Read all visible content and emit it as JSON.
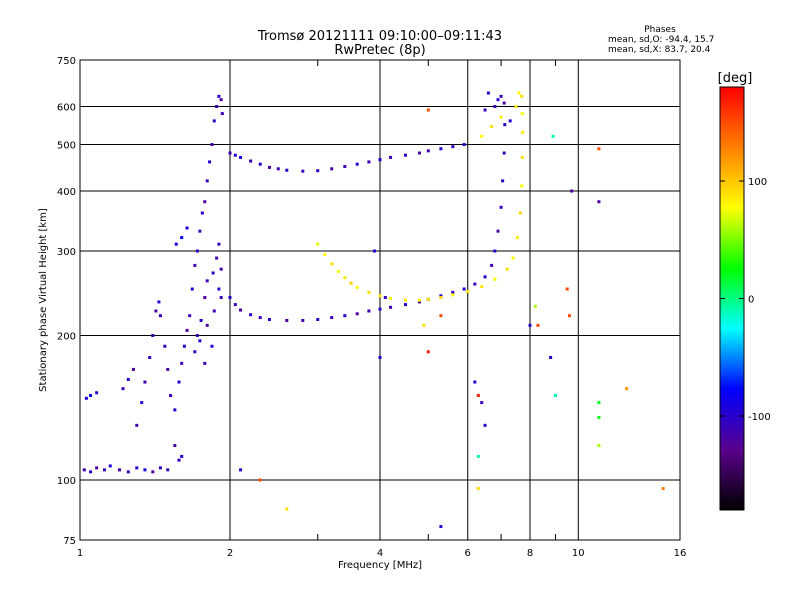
{
  "chart_data": {
    "type": "scatter",
    "title": "Tromsø 20121111 09:10:00–09:11:43",
    "subtitle": "RwPretec (8p)",
    "xlabel": "Frequency [MHz]",
    "ylabel": "Stationary phase Virtual Height [km]",
    "x_scale": "log",
    "y_scale": "log",
    "xlim": [
      1,
      16
    ],
    "ylim": [
      75,
      750
    ],
    "grid": true,
    "x_ticks": [
      1,
      2,
      4,
      6,
      8,
      10,
      16
    ],
    "x_minor_ticks": [
      3,
      5,
      7,
      9
    ],
    "y_ticks": [
      75,
      100,
      200,
      300,
      400,
      500,
      600,
      750
    ],
    "info_title": "Phases",
    "info_lines": [
      "mean, sd,O: -94.4, 15.7",
      "mean, sd,X:  83.7, 20.4"
    ],
    "colorbar": {
      "label": "[deg]",
      "range": [
        -180,
        180
      ],
      "ticks": [
        100,
        0,
        -100
      ],
      "colors": [
        "#000000",
        "#5a008c",
        "#0000ff",
        "#00ffff",
        "#00ff00",
        "#ffff00",
        "#ff8000",
        "#ff0000"
      ]
    },
    "series": [
      {
        "values": [
          {
            "x": 1.02,
            "y": 105,
            "p": -110
          },
          {
            "x": 1.05,
            "y": 104,
            "p": -100
          },
          {
            "x": 1.08,
            "y": 106,
            "p": -120
          },
          {
            "x": 1.12,
            "y": 105,
            "p": -105
          },
          {
            "x": 1.15,
            "y": 107,
            "p": -95
          },
          {
            "x": 1.2,
            "y": 105,
            "p": -115
          },
          {
            "x": 1.25,
            "y": 104,
            "p": -110
          },
          {
            "x": 1.3,
            "y": 106,
            "p": -100
          },
          {
            "x": 1.35,
            "y": 105,
            "p": -90
          },
          {
            "x": 1.4,
            "y": 104,
            "p": -120
          },
          {
            "x": 1.45,
            "y": 106,
            "p": -100
          },
          {
            "x": 1.5,
            "y": 105,
            "p": -110
          },
          {
            "x": 1.03,
            "y": 148,
            "p": -90
          },
          {
            "x": 1.05,
            "y": 150,
            "p": -80
          },
          {
            "x": 1.08,
            "y": 152,
            "p": -100
          },
          {
            "x": 1.22,
            "y": 155,
            "p": -110
          },
          {
            "x": 1.25,
            "y": 162,
            "p": -100
          },
          {
            "x": 1.28,
            "y": 170,
            "p": -120
          },
          {
            "x": 1.3,
            "y": 130,
            "p": -110
          },
          {
            "x": 1.33,
            "y": 145,
            "p": -100
          },
          {
            "x": 1.35,
            "y": 160,
            "p": -115
          },
          {
            "x": 1.38,
            "y": 180,
            "p": -105
          },
          {
            "x": 1.4,
            "y": 200,
            "p": -110
          },
          {
            "x": 1.42,
            "y": 225,
            "p": -120
          },
          {
            "x": 1.44,
            "y": 235,
            "p": -100
          },
          {
            "x": 1.45,
            "y": 220,
            "p": -110
          },
          {
            "x": 1.48,
            "y": 190,
            "p": -105
          },
          {
            "x": 1.5,
            "y": 170,
            "p": -115
          },
          {
            "x": 1.52,
            "y": 150,
            "p": -110
          },
          {
            "x": 1.55,
            "y": 140,
            "p": -100
          },
          {
            "x": 1.58,
            "y": 160,
            "p": -95
          },
          {
            "x": 1.6,
            "y": 175,
            "p": -110
          },
          {
            "x": 1.62,
            "y": 190,
            "p": -100
          },
          {
            "x": 1.64,
            "y": 205,
            "p": -120
          },
          {
            "x": 1.66,
            "y": 220,
            "p": -110
          },
          {
            "x": 1.68,
            "y": 250,
            "p": -100
          },
          {
            "x": 1.7,
            "y": 280,
            "p": -115
          },
          {
            "x": 1.72,
            "y": 300,
            "p": -105
          },
          {
            "x": 1.74,
            "y": 330,
            "p": -110
          },
          {
            "x": 1.76,
            "y": 360,
            "p": -100
          },
          {
            "x": 1.78,
            "y": 380,
            "p": -120
          },
          {
            "x": 1.8,
            "y": 420,
            "p": -110
          },
          {
            "x": 1.82,
            "y": 460,
            "p": -100
          },
          {
            "x": 1.84,
            "y": 500,
            "p": -115
          },
          {
            "x": 1.86,
            "y": 560,
            "p": -105
          },
          {
            "x": 1.88,
            "y": 600,
            "p": -110
          },
          {
            "x": 1.9,
            "y": 630,
            "p": -100
          },
          {
            "x": 1.92,
            "y": 620,
            "p": -120
          },
          {
            "x": 1.93,
            "y": 580,
            "p": -110
          },
          {
            "x": 1.55,
            "y": 118,
            "p": -120
          },
          {
            "x": 1.58,
            "y": 110,
            "p": -110
          },
          {
            "x": 1.6,
            "y": 112,
            "p": -100
          },
          {
            "x": 1.72,
            "y": 200,
            "p": -110
          },
          {
            "x": 1.75,
            "y": 215,
            "p": -100
          },
          {
            "x": 1.78,
            "y": 240,
            "p": -120
          },
          {
            "x": 1.8,
            "y": 260,
            "p": -110
          },
          {
            "x": 1.85,
            "y": 270,
            "p": -100
          },
          {
            "x": 1.88,
            "y": 290,
            "p": -115
          },
          {
            "x": 1.9,
            "y": 310,
            "p": -105
          },
          {
            "x": 1.92,
            "y": 240,
            "p": -110
          },
          {
            "x": 1.7,
            "y": 185,
            "p": -110
          },
          {
            "x": 1.74,
            "y": 195,
            "p": -100
          },
          {
            "x": 1.8,
            "y": 210,
            "p": -120
          },
          {
            "x": 1.86,
            "y": 225,
            "p": -110
          },
          {
            "x": 1.9,
            "y": 250,
            "p": -100
          },
          {
            "x": 1.92,
            "y": 275,
            "p": -115
          },
          {
            "x": 1.78,
            "y": 175,
            "p": -110
          },
          {
            "x": 1.84,
            "y": 190,
            "p": -100
          },
          {
            "x": 1.56,
            "y": 310,
            "p": -90
          },
          {
            "x": 1.6,
            "y": 320,
            "p": -80
          },
          {
            "x": 1.64,
            "y": 335,
            "p": -100
          },
          {
            "x": 2.0,
            "y": 480,
            "p": -110
          },
          {
            "x": 2.05,
            "y": 475,
            "p": -100
          },
          {
            "x": 2.1,
            "y": 470,
            "p": -90
          },
          {
            "x": 2.2,
            "y": 462,
            "p": -110
          },
          {
            "x": 2.3,
            "y": 455,
            "p": -100
          },
          {
            "x": 2.4,
            "y": 448,
            "p": -120
          },
          {
            "x": 2.5,
            "y": 445,
            "p": -110
          },
          {
            "x": 2.6,
            "y": 442,
            "p": -100
          },
          {
            "x": 2.8,
            "y": 440,
            "p": -110
          },
          {
            "x": 3.0,
            "y": 441,
            "p": -100
          },
          {
            "x": 3.2,
            "y": 445,
            "p": -120
          },
          {
            "x": 3.4,
            "y": 450,
            "p": -110
          },
          {
            "x": 3.6,
            "y": 455,
            "p": -100
          },
          {
            "x": 3.8,
            "y": 460,
            "p": -110
          },
          {
            "x": 4.0,
            "y": 465,
            "p": -100
          },
          {
            "x": 4.2,
            "y": 470,
            "p": -110
          },
          {
            "x": 4.5,
            "y": 475,
            "p": -100
          },
          {
            "x": 4.8,
            "y": 480,
            "p": -120
          },
          {
            "x": 5.0,
            "y": 485,
            "p": -110
          },
          {
            "x": 5.3,
            "y": 490,
            "p": -100
          },
          {
            "x": 5.6,
            "y": 495,
            "p": -110
          },
          {
            "x": 5.9,
            "y": 500,
            "p": -100
          },
          {
            "x": 2.0,
            "y": 240,
            "p": -100
          },
          {
            "x": 2.05,
            "y": 232,
            "p": -110
          },
          {
            "x": 2.1,
            "y": 226,
            "p": -120
          },
          {
            "x": 2.2,
            "y": 221,
            "p": -100
          },
          {
            "x": 2.3,
            "y": 218,
            "p": -110
          },
          {
            "x": 2.4,
            "y": 216,
            "p": -100
          },
          {
            "x": 2.6,
            "y": 215,
            "p": -120
          },
          {
            "x": 2.8,
            "y": 215,
            "p": -110
          },
          {
            "x": 3.0,
            "y": 216,
            "p": -100
          },
          {
            "x": 3.2,
            "y": 218,
            "p": -110
          },
          {
            "x": 3.4,
            "y": 220,
            "p": -100
          },
          {
            "x": 3.6,
            "y": 222,
            "p": -120
          },
          {
            "x": 3.8,
            "y": 225,
            "p": -110
          },
          {
            "x": 4.0,
            "y": 227,
            "p": -100
          },
          {
            "x": 4.2,
            "y": 229,
            "p": -110
          },
          {
            "x": 4.5,
            "y": 232,
            "p": -100
          },
          {
            "x": 4.8,
            "y": 235,
            "p": -120
          },
          {
            "x": 5.0,
            "y": 238,
            "p": -110
          },
          {
            "x": 5.3,
            "y": 242,
            "p": -100
          },
          {
            "x": 5.6,
            "y": 246,
            "p": -110
          },
          {
            "x": 5.9,
            "y": 250,
            "p": -100
          },
          {
            "x": 6.2,
            "y": 256,
            "p": -110
          },
          {
            "x": 6.5,
            "y": 265,
            "p": -100
          },
          {
            "x": 6.7,
            "y": 280,
            "p": -110
          },
          {
            "x": 6.8,
            "y": 300,
            "p": -100
          },
          {
            "x": 6.9,
            "y": 330,
            "p": -120
          },
          {
            "x": 7.0,
            "y": 370,
            "p": -110
          },
          {
            "x": 7.05,
            "y": 420,
            "p": -100
          },
          {
            "x": 7.1,
            "y": 480,
            "p": -110
          },
          {
            "x": 7.12,
            "y": 550,
            "p": -100
          },
          {
            "x": 7.1,
            "y": 610,
            "p": -120
          },
          {
            "x": 7.0,
            "y": 630,
            "p": -110
          },
          {
            "x": 6.9,
            "y": 620,
            "p": -100
          },
          {
            "x": 6.8,
            "y": 600,
            "p": -110
          },
          {
            "x": 3.0,
            "y": 310,
            "p": 70
          },
          {
            "x": 3.1,
            "y": 295,
            "p": 80
          },
          {
            "x": 3.2,
            "y": 282,
            "p": 90
          },
          {
            "x": 3.3,
            "y": 272,
            "p": 75
          },
          {
            "x": 3.4,
            "y": 264,
            "p": 85
          },
          {
            "x": 3.5,
            "y": 257,
            "p": 95
          },
          {
            "x": 3.6,
            "y": 252,
            "p": 80
          },
          {
            "x": 3.8,
            "y": 246,
            "p": 90
          },
          {
            "x": 4.0,
            "y": 242,
            "p": 85
          },
          {
            "x": 4.2,
            "y": 239,
            "p": 75
          },
          {
            "x": 4.5,
            "y": 237,
            "p": 90
          },
          {
            "x": 4.8,
            "y": 237,
            "p": 80
          },
          {
            "x": 5.0,
            "y": 238,
            "p": 85
          },
          {
            "x": 5.3,
            "y": 240,
            "p": 95
          },
          {
            "x": 5.6,
            "y": 243,
            "p": 80
          },
          {
            "x": 6.0,
            "y": 247,
            "p": 90
          },
          {
            "x": 6.4,
            "y": 253,
            "p": 85
          },
          {
            "x": 6.8,
            "y": 262,
            "p": 75
          },
          {
            "x": 7.2,
            "y": 275,
            "p": 90
          },
          {
            "x": 7.4,
            "y": 290,
            "p": 80
          },
          {
            "x": 7.55,
            "y": 320,
            "p": 85
          },
          {
            "x": 7.65,
            "y": 360,
            "p": 95
          },
          {
            "x": 7.7,
            "y": 410,
            "p": 80
          },
          {
            "x": 7.72,
            "y": 470,
            "p": 90
          },
          {
            "x": 7.73,
            "y": 530,
            "p": 85
          },
          {
            "x": 7.72,
            "y": 580,
            "p": 75
          },
          {
            "x": 7.7,
            "y": 630,
            "p": 90
          },
          {
            "x": 7.6,
            "y": 640,
            "p": 80
          },
          {
            "x": 7.5,
            "y": 600,
            "p": 85
          },
          {
            "x": 6.4,
            "y": 520,
            "p": 80
          },
          {
            "x": 6.7,
            "y": 545,
            "p": 90
          },
          {
            "x": 7.0,
            "y": 570,
            "p": 85
          },
          {
            "x": 5.0,
            "y": 590,
            "p": 150
          },
          {
            "x": 6.6,
            "y": 640,
            "p": -100
          },
          {
            "x": 6.5,
            "y": 590,
            "p": -110
          },
          {
            "x": 7.3,
            "y": 560,
            "p": -90
          },
          {
            "x": 2.1,
            "y": 105,
            "p": -100
          },
          {
            "x": 2.3,
            "y": 100,
            "p": 150
          },
          {
            "x": 2.6,
            "y": 87,
            "p": 90
          },
          {
            "x": 3.9,
            "y": 300,
            "p": -100
          },
          {
            "x": 4.1,
            "y": 240,
            "p": -110
          },
          {
            "x": 4.9,
            "y": 210,
            "p": 90
          },
          {
            "x": 5.3,
            "y": 220,
            "p": 150
          },
          {
            "x": 5.0,
            "y": 185,
            "p": 170
          },
          {
            "x": 4.0,
            "y": 180,
            "p": -100
          },
          {
            "x": 6.2,
            "y": 160,
            "p": -100
          },
          {
            "x": 6.3,
            "y": 150,
            "p": 170
          },
          {
            "x": 6.4,
            "y": 145,
            "p": -110
          },
          {
            "x": 6.5,
            "y": 130,
            "p": -100
          },
          {
            "x": 6.3,
            "y": 112,
            "p": -10
          },
          {
            "x": 6.3,
            "y": 96,
            "p": 90
          },
          {
            "x": 5.3,
            "y": 80,
            "p": -100
          },
          {
            "x": 8.2,
            "y": 230,
            "p": 60
          },
          {
            "x": 8.3,
            "y": 210,
            "p": 150
          },
          {
            "x": 8.8,
            "y": 180,
            "p": -100
          },
          {
            "x": 9.0,
            "y": 150,
            "p": -10
          },
          {
            "x": 9.5,
            "y": 250,
            "p": 150
          },
          {
            "x": 9.6,
            "y": 220,
            "p": 150
          },
          {
            "x": 9.7,
            "y": 400,
            "p": -120
          },
          {
            "x": 8.9,
            "y": 520,
            "p": -10
          },
          {
            "x": 11.0,
            "y": 490,
            "p": 150
          },
          {
            "x": 11.0,
            "y": 380,
            "p": -120
          },
          {
            "x": 11.0,
            "y": 145,
            "p": 20
          },
          {
            "x": 11.0,
            "y": 135,
            "p": 20
          },
          {
            "x": 11.0,
            "y": 118,
            "p": 60
          },
          {
            "x": 12.5,
            "y": 155,
            "p": 120
          },
          {
            "x": 14.8,
            "y": 96,
            "p": 130
          },
          {
            "x": 8.0,
            "y": 210,
            "p": -100
          }
        ]
      }
    ]
  }
}
